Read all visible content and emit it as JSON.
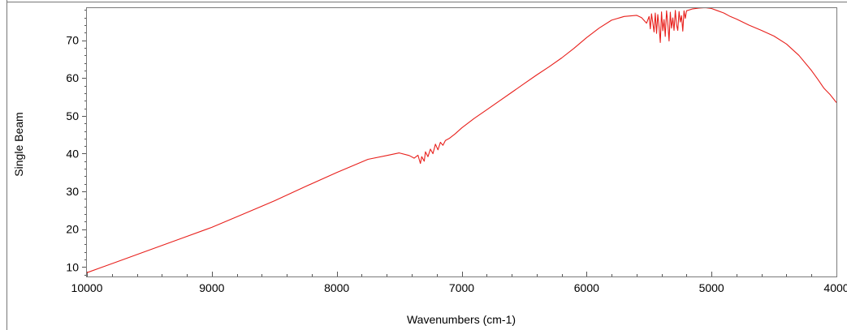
{
  "chart_data": {
    "type": "line",
    "title": "",
    "xlabel": "Wavenumbers (cm-1)",
    "ylabel": "Single Beam",
    "xlim": [
      10000,
      4000
    ],
    "ylim": [
      7.5,
      78.5
    ],
    "x_reversed": true,
    "grid": false,
    "x_ticks": [
      10000,
      9000,
      8000,
      7000,
      6000,
      5000,
      4000
    ],
    "y_ticks": [
      10,
      20,
      30,
      40,
      50,
      60,
      70
    ],
    "x_tick_labels": [
      "10000",
      "9000",
      "8000",
      "7000",
      "6000",
      "5000",
      "4000"
    ],
    "y_tick_labels": [
      "10",
      "20",
      "30",
      "40",
      "50",
      "60",
      "70"
    ],
    "line_color": "#e8201c",
    "series": [
      {
        "x": [
          10000,
          9750,
          9500,
          9250,
          9000,
          8750,
          8500,
          8250,
          8000,
          7750,
          7600,
          7500,
          7420,
          7380,
          7350,
          7330,
          7320,
          7300,
          7290,
          7270,
          7250,
          7230,
          7210,
          7190,
          7170,
          7150,
          7130,
          7100,
          7050,
          7000,
          6900,
          6800,
          6700,
          6600,
          6500,
          6400,
          6300,
          6200,
          6100,
          6000,
          5900,
          5800,
          5700,
          5600,
          5560,
          5520,
          5500,
          5490,
          5480,
          5470,
          5460,
          5450,
          5440,
          5430,
          5420,
          5410,
          5400,
          5390,
          5380,
          5370,
          5360,
          5350,
          5340,
          5330,
          5320,
          5310,
          5300,
          5290,
          5280,
          5270,
          5260,
          5250,
          5240,
          5230,
          5220,
          5210,
          5200,
          5150,
          5100,
          5050,
          5000,
          4950,
          4900,
          4850,
          4800,
          4700,
          4600,
          4500,
          4400,
          4300,
          4200,
          4150,
          4100,
          4050,
          4000
        ],
        "y": [
          8.5,
          11.5,
          14.5,
          17.5,
          20.5,
          24,
          27.5,
          31.3,
          35,
          38.5,
          39.5,
          40.2,
          39.5,
          38.8,
          39.6,
          37.4,
          39.2,
          38.0,
          40.5,
          39.2,
          41.2,
          40.0,
          42.5,
          41.0,
          43.0,
          42.2,
          43.5,
          44.0,
          45.3,
          46.8,
          49.3,
          51.6,
          53.9,
          56.2,
          58.5,
          60.8,
          63.0,
          65.3,
          67.9,
          70.7,
          73.2,
          75.3,
          76.3,
          76.6,
          76.0,
          74.5,
          76.3,
          73.0,
          77.0,
          74.5,
          72.2,
          77.2,
          71.8,
          76.8,
          73.5,
          69.4,
          77.5,
          72.5,
          75.5,
          71.0,
          77.8,
          74.6,
          69.8,
          77.4,
          73.2,
          75.9,
          72.6,
          77.9,
          74.1,
          72.6,
          77.6,
          74.8,
          76.5,
          72.4,
          77.8,
          75.8,
          77.8,
          78.3,
          78.5,
          78.6,
          78.4,
          77.8,
          77.2,
          76.3,
          75.6,
          74.0,
          72.6,
          71.1,
          69.0,
          66.0,
          62.0,
          59.7,
          57.3,
          55.6,
          53.5
        ]
      }
    ]
  }
}
